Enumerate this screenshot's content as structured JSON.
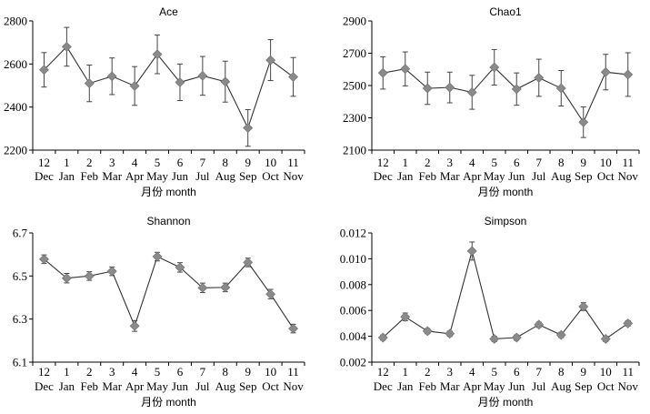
{
  "chart_data": [
    {
      "type": "line",
      "title": "Ace",
      "xlabel": "月份 month",
      "ylabel": "",
      "ylim": [
        2200,
        2800
      ],
      "yticks": [
        "2200",
        "2400",
        "2600",
        "2800"
      ],
      "categories_num": [
        "12",
        "1",
        "2",
        "3",
        "4",
        "5",
        "6",
        "7",
        "8",
        "9",
        "10",
        "11"
      ],
      "categories": [
        "Dec",
        "Jan",
        "Feb",
        "Mar",
        "Apr",
        "May",
        "Jun",
        "Jul",
        "Aug",
        "Sep",
        "Oct",
        "Nov"
      ],
      "values": [
        2573,
        2680,
        2510,
        2543,
        2498,
        2645,
        2515,
        2545,
        2518,
        2303,
        2618,
        2540
      ],
      "errors": [
        80,
        90,
        85,
        85,
        90,
        90,
        85,
        90,
        95,
        85,
        95,
        90
      ]
    },
    {
      "type": "line",
      "title": "Chao1",
      "xlabel": "月份 month",
      "ylabel": "",
      "ylim": [
        2100,
        2900
      ],
      "yticks": [
        "2100",
        "2300",
        "2500",
        "2700",
        "2900"
      ],
      "categories_num": [
        "12",
        "1",
        "2",
        "3",
        "4",
        "5",
        "6",
        "7",
        "8",
        "9",
        "10",
        "11"
      ],
      "categories": [
        "Dec",
        "Jan",
        "Feb",
        "Mar",
        "Apr",
        "May",
        "Jun",
        "Jul",
        "Aug",
        "Sep",
        "Oct",
        "Nov"
      ],
      "values": [
        2578,
        2603,
        2483,
        2488,
        2458,
        2613,
        2478,
        2548,
        2483,
        2273,
        2583,
        2568
      ],
      "errors": [
        100,
        105,
        100,
        95,
        105,
        110,
        100,
        115,
        110,
        95,
        110,
        135
      ]
    },
    {
      "type": "line",
      "title": "Shannon",
      "xlabel": "月份 month",
      "ylabel": "",
      "ylim": [
        6.1,
        6.7
      ],
      "yticks": [
        "6.1",
        "6.3",
        "6.5",
        "6.7"
      ],
      "categories_num": [
        "12",
        "1",
        "2",
        "3",
        "4",
        "5",
        "6",
        "7",
        "8",
        "9",
        "10",
        "11"
      ],
      "categories": [
        "Dec",
        "Jan",
        "Feb",
        "Mar",
        "Apr",
        "May",
        "Jun",
        "Jul",
        "Aug",
        "Sep",
        "Oct",
        "Nov"
      ],
      "values": [
        6.578,
        6.49,
        6.5,
        6.522,
        6.268,
        6.59,
        6.54,
        6.445,
        6.447,
        6.563,
        6.416,
        6.256
      ],
      "errors": [
        0.02,
        0.022,
        0.02,
        0.02,
        0.025,
        0.02,
        0.022,
        0.022,
        0.02,
        0.02,
        0.022,
        0.02
      ]
    },
    {
      "type": "line",
      "title": "Simpson",
      "xlabel": "月份 month",
      "ylabel": "",
      "ylim": [
        0.002,
        0.012
      ],
      "yticks": [
        "0.002",
        "0.004",
        "0.006",
        "0.008",
        "0.010",
        "0.012"
      ],
      "categories_num": [
        "12",
        "1",
        "2",
        "3",
        "4",
        "5",
        "6",
        "7",
        "8",
        "9",
        "10",
        "11"
      ],
      "categories": [
        "Dec",
        "Jan",
        "Feb",
        "Mar",
        "Apr",
        "May",
        "Jun",
        "Jul",
        "Aug",
        "Sep",
        "Oct",
        "Nov"
      ],
      "values": [
        0.0039,
        0.0055,
        0.0044,
        0.0042,
        0.0106,
        0.0038,
        0.0039,
        0.0049,
        0.0041,
        0.0063,
        0.0038,
        0.005
      ],
      "errors": [
        0.0002,
        0.0003,
        0.0002,
        0.0002,
        0.0007,
        0.0002,
        0.0002,
        0.0002,
        0.0002,
        0.0003,
        0.0002,
        0.0002
      ]
    }
  ]
}
